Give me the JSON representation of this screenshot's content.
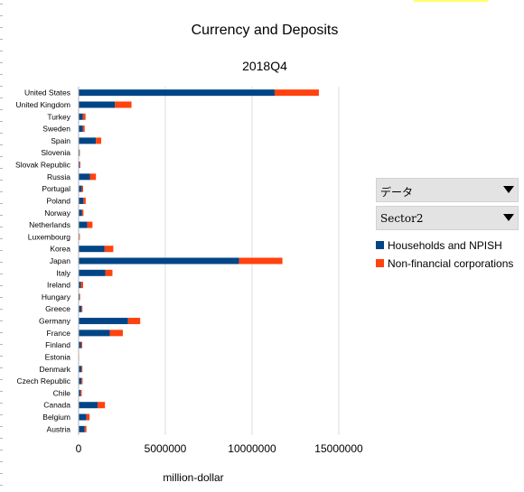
{
  "colors": {
    "households": "#004586",
    "corporations": "#ff420e",
    "grid": "#dddddd",
    "highlight": "#ffff66"
  },
  "controls": {
    "data_field": "データ",
    "sector_field": "Sector2"
  },
  "chart_data": {
    "type": "bar",
    "orientation": "horizontal",
    "stacked": true,
    "title": "Currency and Deposits",
    "subtitle": "2018Q4",
    "xlabel": "million-dollar",
    "ylabel": "",
    "xlim": [
      0,
      15000000
    ],
    "xticks": [
      0,
      5000000,
      10000000,
      15000000
    ],
    "grid": true,
    "legend_position": "right",
    "categories": [
      "United States",
      "United Kingdom",
      "Turkey",
      "Sweden",
      "Spain",
      "Slovenia",
      "Slovak Republic",
      "Russia",
      "Portugal",
      "Poland",
      "Norway",
      "Netherlands",
      "Luxembourg",
      "Korea",
      "Japan",
      "Italy",
      "Ireland",
      "Hungary",
      "Greece",
      "Germany",
      "France",
      "Finland",
      "Estonia",
      "Denmark",
      "Czech Republic",
      "Chile",
      "Canada",
      "Belgium",
      "Austria"
    ],
    "series": [
      {
        "name": "Households and NPISH",
        "color": "#004586",
        "values": [
          11300000,
          2100000,
          250000,
          250000,
          1000000,
          50000,
          70000,
          650000,
          180000,
          280000,
          200000,
          500000,
          40000,
          1500000,
          9250000,
          1550000,
          140000,
          60000,
          170000,
          2850000,
          1800000,
          150000,
          20000,
          170000,
          170000,
          120000,
          1100000,
          450000,
          350000
        ]
      },
      {
        "name": "Non-financial corporations",
        "color": "#ff420e",
        "values": [
          2550000,
          950000,
          150000,
          100000,
          300000,
          20000,
          30000,
          350000,
          80000,
          130000,
          80000,
          300000,
          30000,
          500000,
          2500000,
          400000,
          120000,
          30000,
          50000,
          700000,
          750000,
          60000,
          10000,
          50000,
          60000,
          60000,
          420000,
          180000,
          100000
        ]
      }
    ]
  }
}
